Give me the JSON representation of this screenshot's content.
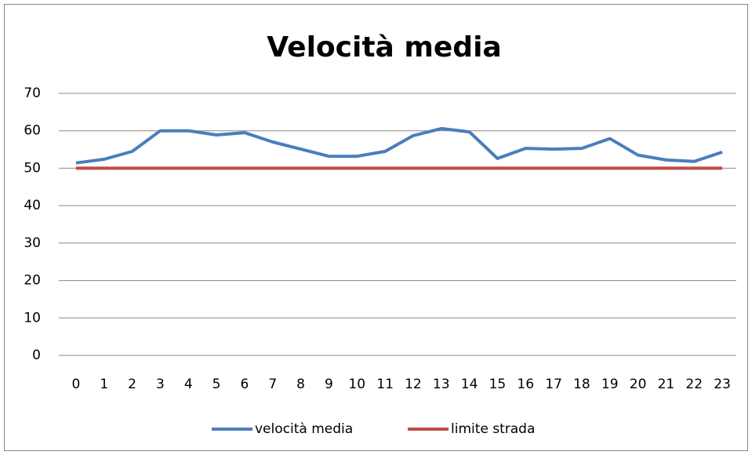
{
  "chart_data": {
    "type": "line",
    "title": "Velocità media",
    "categories": [
      "0",
      "1",
      "2",
      "3",
      "4",
      "5",
      "6",
      "7",
      "8",
      "9",
      "10",
      "11",
      "12",
      "13",
      "14",
      "15",
      "16",
      "17",
      "18",
      "19",
      "20",
      "21",
      "22",
      "23"
    ],
    "series": [
      {
        "name": "velocità media",
        "color": "#4a7ebb",
        "values": [
          51.4,
          52.4,
          54.5,
          60,
          60,
          58.9,
          59.5,
          57,
          55.1,
          53.2,
          53.2,
          54.5,
          58.7,
          60.6,
          59.7,
          52.6,
          55.3,
          55.1,
          55.3,
          57.9,
          53.5,
          52.2,
          51.8,
          54.3
        ]
      },
      {
        "name": "limite strada",
        "color": "#be4b48",
        "values": [
          50,
          50,
          50,
          50,
          50,
          50,
          50,
          50,
          50,
          50,
          50,
          50,
          50,
          50,
          50,
          50,
          50,
          50,
          50,
          50,
          50,
          50,
          50,
          50
        ]
      }
    ],
    "ylim": [
      0,
      70
    ],
    "yticks": [
      0,
      10,
      20,
      30,
      40,
      50,
      60,
      70
    ],
    "grid": true,
    "legend": "bottom"
  }
}
